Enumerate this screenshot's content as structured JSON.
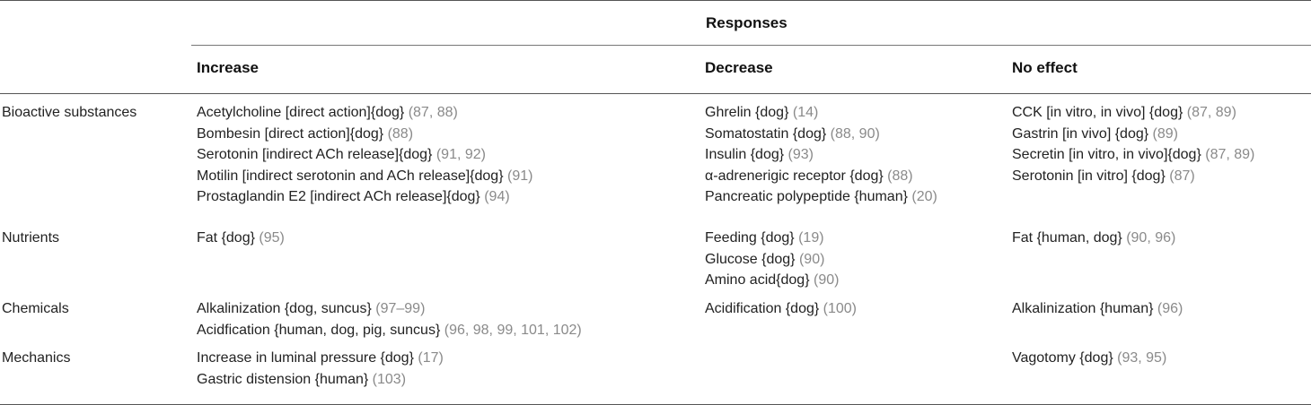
{
  "table": {
    "group_header": "Responses",
    "columns": [
      "Increase",
      "Decrease",
      "No effect"
    ],
    "rows": [
      {
        "category": "Bioactive substances",
        "increase": [
          {
            "text": "Acetylcholine [direct action]{dog} ",
            "ref": "(87, 88)"
          },
          {
            "text": "Bombesin [direct action]{dog} ",
            "ref": "(88)"
          },
          {
            "text": "Serotonin [indirect ACh release]{dog} ",
            "ref": "(91, 92)"
          },
          {
            "text": "Motilin [indirect serotonin and ACh release]{dog} ",
            "ref": "(91)"
          },
          {
            "text": "Prostaglandin E2 [indirect ACh release]{dog} ",
            "ref": "(94)"
          }
        ],
        "decrease": [
          {
            "text": "Ghrelin {dog} ",
            "ref": "(14)"
          },
          {
            "text": "Somatostatin {dog} ",
            "ref": "(88, 90)"
          },
          {
            "text": "Insulin {dog} ",
            "ref": "(93)"
          },
          {
            "text": "α-adrenerigic receptor {dog} ",
            "ref": "(88)"
          },
          {
            "text": "Pancreatic polypeptide {human} ",
            "ref": "(20)"
          }
        ],
        "no_effect": [
          {
            "text": "CCK [in vitro, in vivo] {dog} ",
            "ref": "(87, 89)"
          },
          {
            "text": "Gastrin [in vivo] {dog} ",
            "ref": "(89)"
          },
          {
            "text": "Secretin [in vitro, in vivo]{dog} ",
            "ref": "(87, 89)"
          },
          {
            "text": "Serotonin [in vitro] {dog} ",
            "ref": "(87)"
          }
        ]
      },
      {
        "category": "Nutrients",
        "increase": [
          {
            "text": "Fat {dog} ",
            "ref": "(95)"
          }
        ],
        "decrease": [
          {
            "text": "Feeding {dog} ",
            "ref": "(19)"
          },
          {
            "text": "Glucose {dog} ",
            "ref": "(90)"
          },
          {
            "text": "Amino acid{dog} ",
            "ref": "(90)"
          }
        ],
        "no_effect": [
          {
            "text": "Fat {human, dog} ",
            "ref": "(90, 96)"
          }
        ]
      },
      {
        "category": "Chemicals",
        "increase": [
          {
            "text": "Alkalinization {dog, suncus} ",
            "ref": "(97–99)"
          },
          {
            "text": "Acidfication {human, dog, pig, suncus} ",
            "ref": "(96, 98, 99, 101, 102)"
          }
        ],
        "decrease": [
          {
            "text": "Acidification {dog} ",
            "ref": "(100)"
          }
        ],
        "no_effect": [
          {
            "text": "Alkalinization {human} ",
            "ref": "(96)"
          }
        ]
      },
      {
        "category": "Mechanics",
        "increase": [
          {
            "text": "Increase in luminal pressure {dog} ",
            "ref": "(17)"
          },
          {
            "text": "Gastric distension {human} ",
            "ref": "(103)"
          }
        ],
        "decrease": [],
        "no_effect": [
          {
            "text": "Vagotomy {dog} ",
            "ref": "(93, 95)"
          }
        ]
      }
    ]
  }
}
